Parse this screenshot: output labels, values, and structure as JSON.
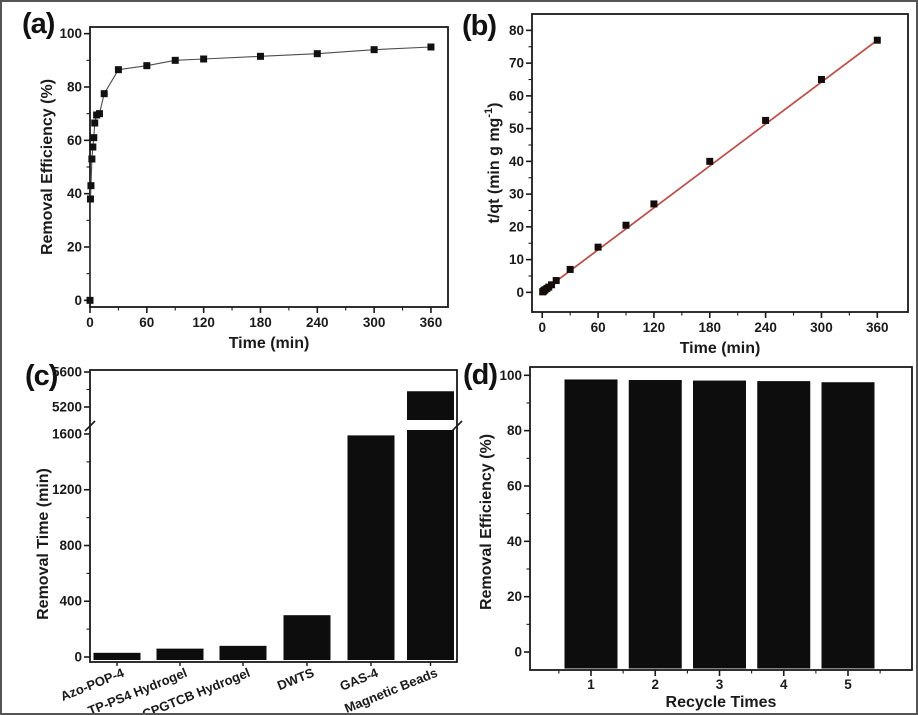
{
  "figure": {
    "background": "#ffffff",
    "ink_color": "#1a1a1a",
    "border_color": "#555555"
  },
  "chart_data": [
    {
      "id": "a",
      "panel_label": "(a)",
      "type": "line",
      "xlabel": "Time (min)",
      "ylabel": "Removal Efficiency (%)",
      "x": [
        0,
        0.5,
        1,
        2,
        3,
        4,
        5,
        7,
        10,
        15,
        30,
        60,
        90,
        120,
        180,
        240,
        300,
        360
      ],
      "y": [
        0,
        38,
        43,
        53,
        57.5,
        61,
        66.5,
        69.5,
        70,
        77.5,
        86.5,
        88,
        90,
        90.5,
        91.5,
        92.5,
        94,
        95
      ],
      "xticks": [
        0,
        60,
        120,
        180,
        240,
        300,
        360
      ],
      "yticks": [
        0,
        20,
        40,
        60,
        80,
        100
      ],
      "xlim": [
        0,
        378
      ],
      "ylim": [
        -2.5,
        102.5
      ],
      "connect": true,
      "line_color": "#4d4d4d",
      "marker": "square",
      "marker_color": "#111111"
    },
    {
      "id": "b",
      "panel_label": "(b)",
      "type": "scatter",
      "xlabel": "Time (min)",
      "ylabel": "t/qt (min g mg⁻¹)",
      "x": [
        0.5,
        1,
        2,
        3,
        5,
        7,
        10,
        15,
        30,
        60,
        90,
        120,
        180,
        240,
        300,
        360
      ],
      "y": [
        0.15,
        0.3,
        0.55,
        0.8,
        1.2,
        1.6,
        2.3,
        3.6,
        7,
        13.8,
        20.5,
        27,
        40,
        52.5,
        65,
        77
      ],
      "fit_line": {
        "x": [
          0,
          360
        ],
        "y": [
          0.2,
          77
        ],
        "color": "#bf4a43"
      },
      "xticks": [
        0,
        60,
        120,
        180,
        240,
        300,
        360
      ],
      "yticks": [
        0,
        10,
        20,
        30,
        40,
        50,
        60,
        70,
        80
      ],
      "xlim": [
        -11,
        393
      ],
      "ylim": [
        -6,
        85
      ],
      "connect": false,
      "marker": "square",
      "marker_color": "#140c0a"
    },
    {
      "id": "c",
      "panel_label": "(c)",
      "type": "bar",
      "axis_broken": true,
      "ylabel": "Removal Time (min)",
      "categories": [
        "Azo-POP-4",
        "TP-PS4 Hydrogel",
        "CPGTCB Hydrogel",
        "DWTS",
        "GAS-4",
        "Magnetic Beads"
      ],
      "values": [
        30,
        60,
        80,
        300,
        1590,
        5380
      ],
      "yticks_lower": [
        0,
        400,
        800,
        1200,
        1600
      ],
      "yticks_upper": [
        5200,
        5600
      ],
      "ylim_lower": [
        0,
        1600
      ],
      "ylim_upper": [
        5150,
        5600
      ],
      "axis_break": [
        1600,
        5150
      ],
      "bar_color": "#0d0d0d"
    },
    {
      "id": "d",
      "panel_label": "(d)",
      "type": "bar",
      "xlabel": "Recycle Times",
      "ylabel": "Removal Efficiency (%)",
      "categories": [
        "1",
        "2",
        "3",
        "4",
        "5"
      ],
      "values": [
        98.5,
        98.3,
        98.1,
        97.9,
        97.5
      ],
      "yticks": [
        0,
        20,
        40,
        60,
        80,
        100
      ],
      "ylim": [
        -6.5,
        103
      ],
      "bar_color": "#0d0d0d"
    }
  ]
}
